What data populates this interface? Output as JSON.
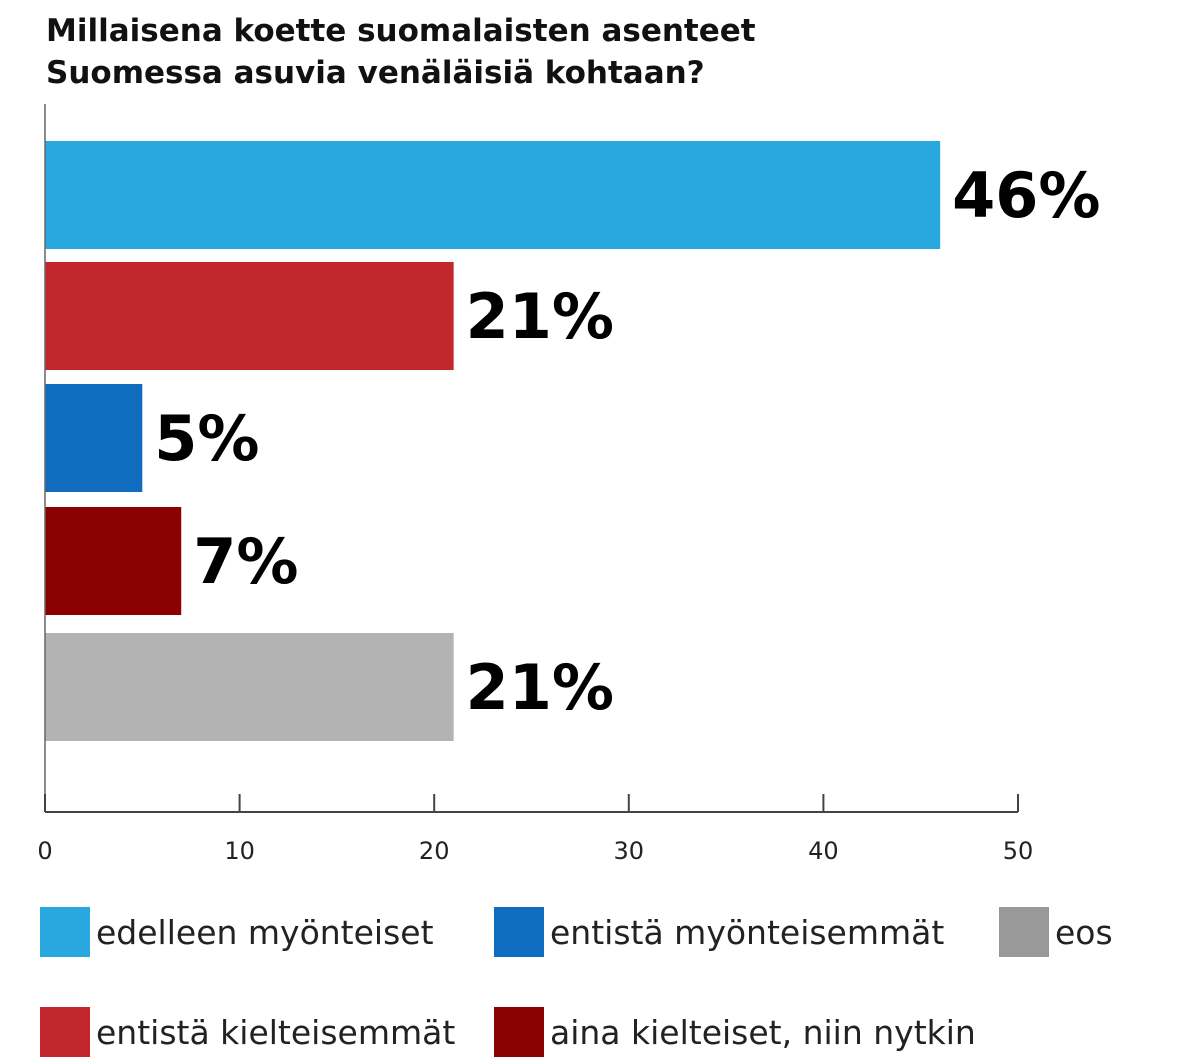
{
  "chart_data": {
    "type": "bar",
    "orientation": "horizontal",
    "title_lines": [
      "Millaisena koette suomalaisten asenteet",
      "Suomessa asuvia venäläisiä kohtaan?"
    ],
    "categories": [
      "edelleen myönteiset",
      "entistä kielteisemmät",
      "entistä myönteisemmät",
      "aina kielteiset, niin nytkin",
      "eos"
    ],
    "values": [
      46,
      21,
      5,
      7,
      21
    ],
    "value_labels": [
      "46%",
      "21%",
      "5%",
      "7%",
      "21%"
    ],
    "colors": [
      "#29a8e0",
      "#c1272d",
      "#0f6cbf",
      "#8b0000",
      "#b3b3b3"
    ],
    "xlim": [
      0,
      50
    ],
    "xticks": [
      0,
      10,
      20,
      30,
      40,
      50
    ],
    "xtick_labels": [
      "0",
      "10",
      "20",
      "30",
      "40",
      "50"
    ],
    "grid": false,
    "legend_position": "bottom",
    "legend": [
      {
        "label": "edelleen myönteiset",
        "color": "#29a8e0"
      },
      {
        "label": "entistä myönteisemmät",
        "color": "#0f6cbf"
      },
      {
        "label": "eos",
        "color": "#999999"
      },
      {
        "label": "entistä kielteisemmät",
        "color": "#c1272d"
      },
      {
        "label": "aina kielteiset, niin nytkin",
        "color": "#8b0000"
      }
    ]
  }
}
